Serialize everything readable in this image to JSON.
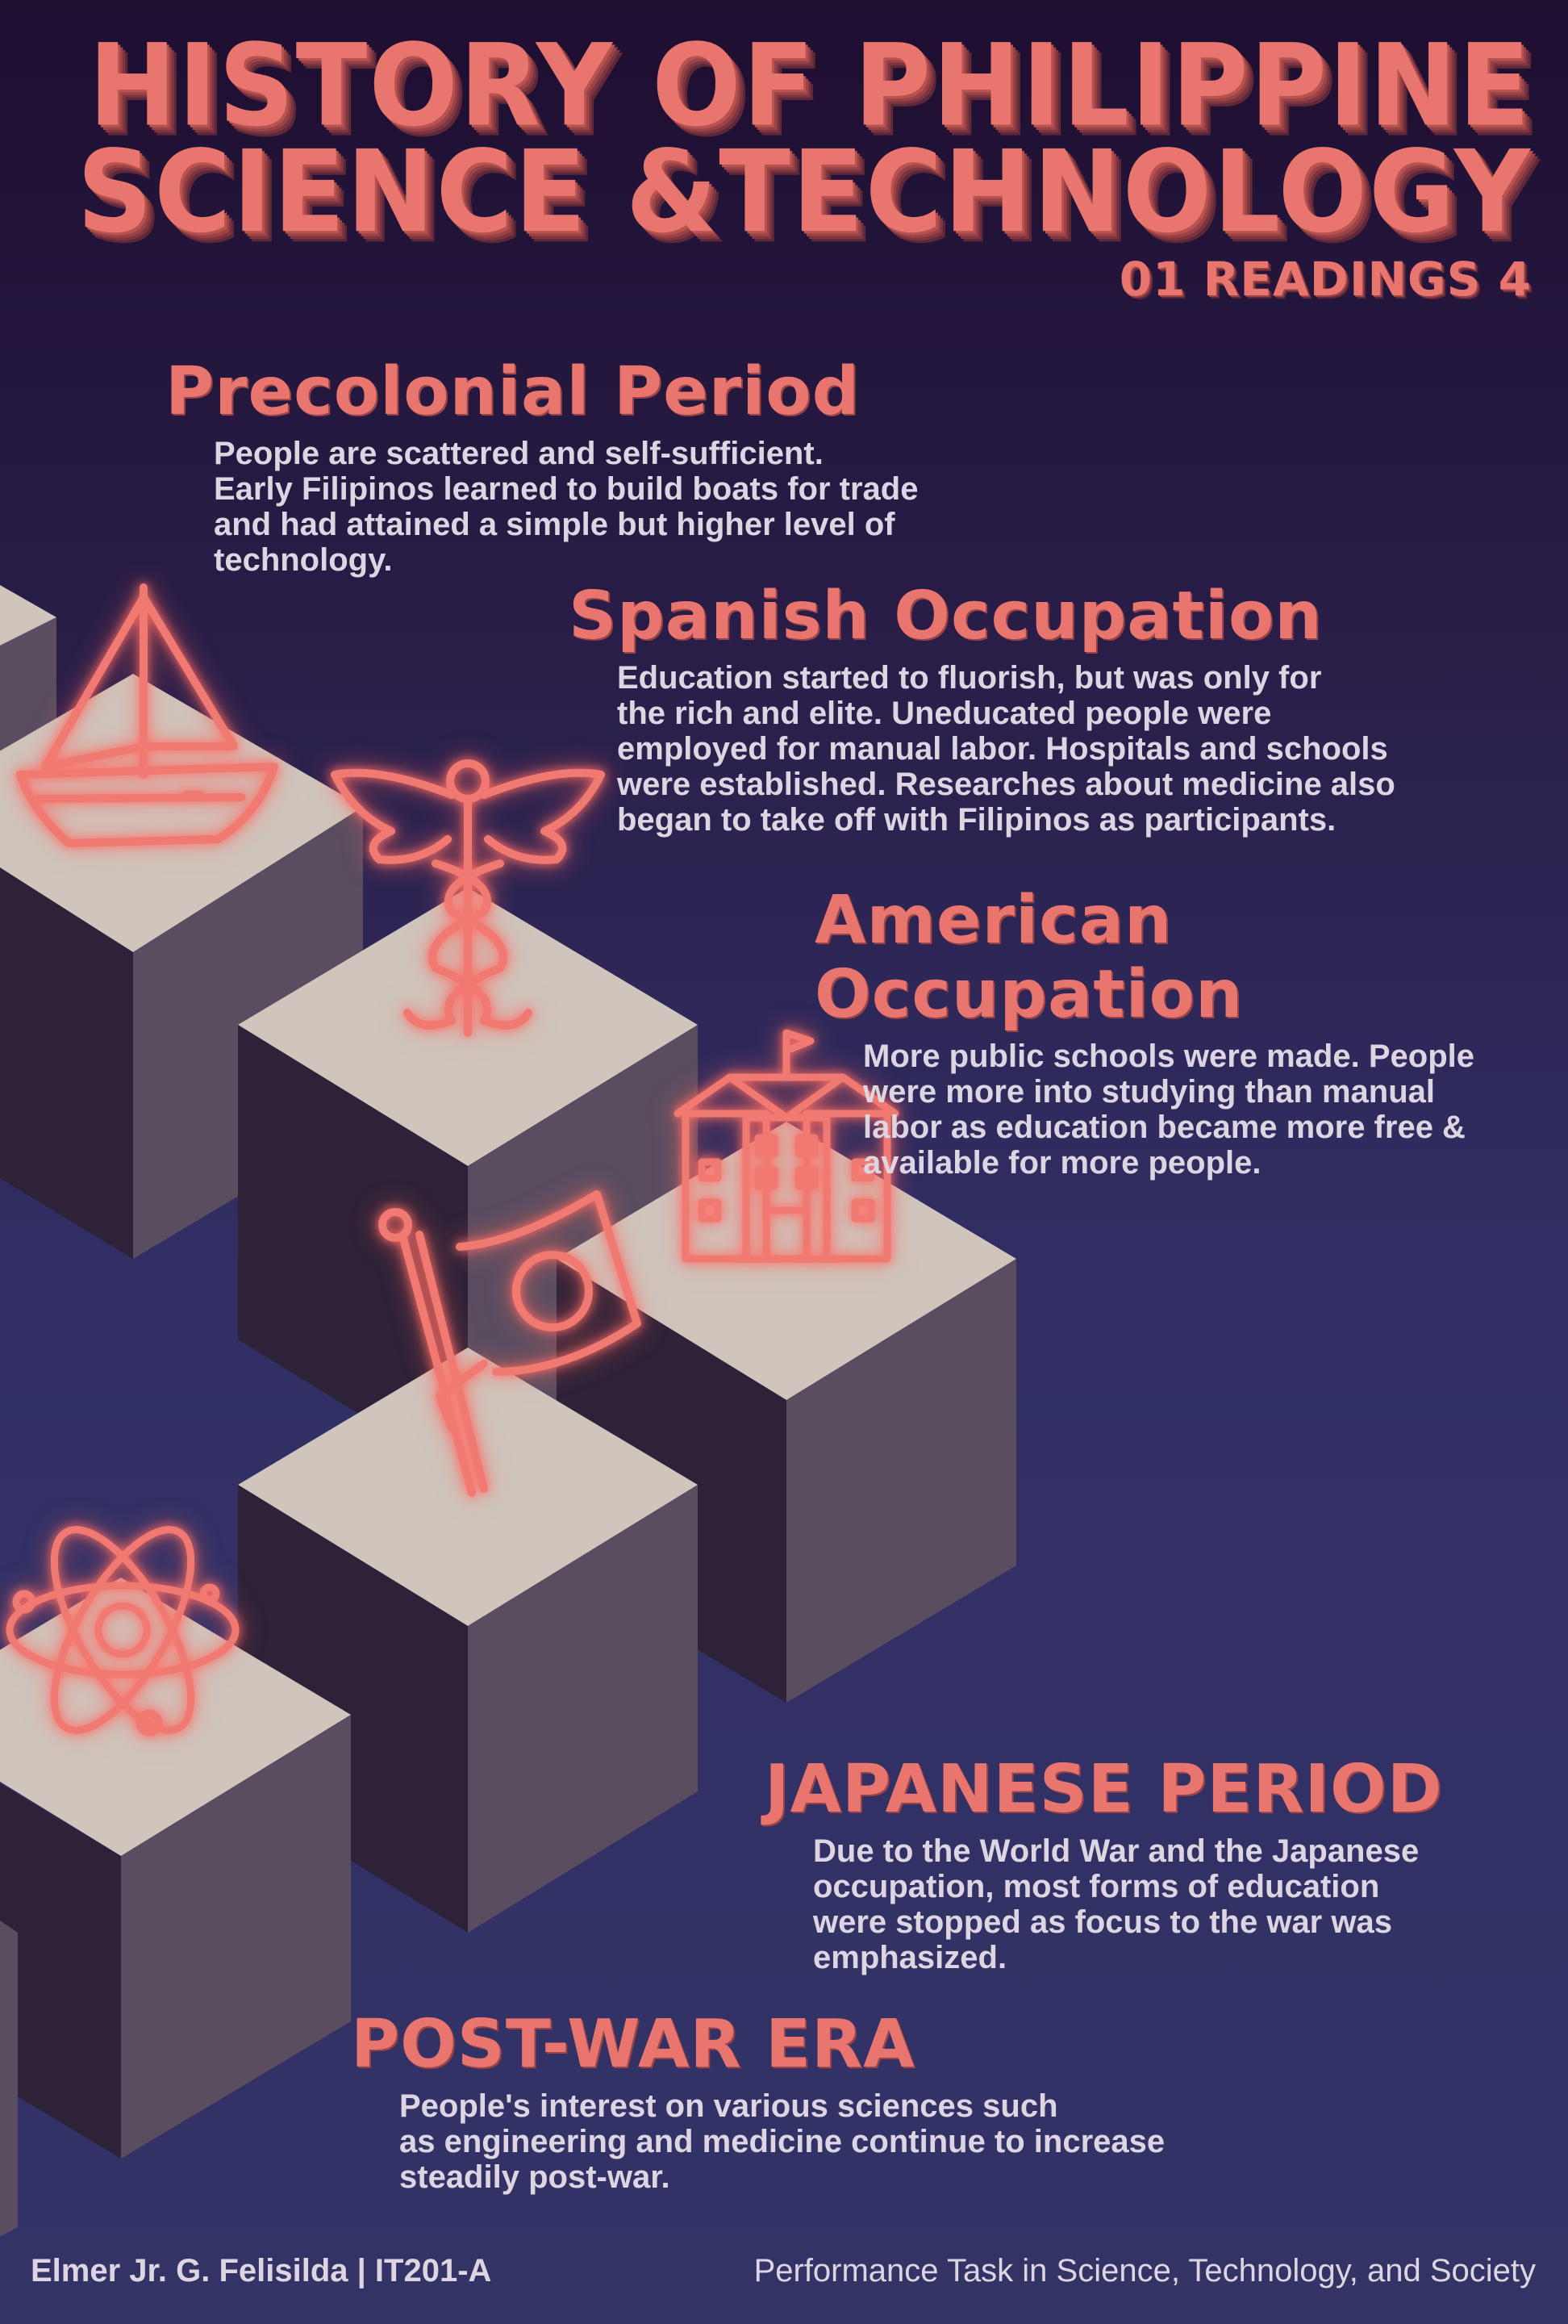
{
  "header": {
    "title_line1": "HISTORY OF PHILIPPINE",
    "title_line2": "SCIENCE &TECHNOLOGY",
    "subtitle": "01 READINGS 4"
  },
  "periods": [
    {
      "title": "Precolonial Period",
      "text": "People are scattered and self-sufficient.\nEarly Filipinos learned to build boats for trade\nand had attained a simple but higher level of\ntechnology."
    },
    {
      "title": "Spanish Occupation",
      "text": "Education started to fluorish, but was only for\nthe rich and elite. Uneducated people were\nemployed for manual labor. Hospitals and schools\nwere established. Researches about medicine also\nbegan to take off with Filipinos as participants."
    },
    {
      "title": "American Occupation",
      "text": "More public schools were made. People\nwere more into studying than manual\nlabor as education became more free &\navailable for more people."
    },
    {
      "title": "JAPANESE PERIOD",
      "text": "Due to the World War and the Japanese\noccupation, most forms of education\nwere stopped as focus to the war was\nemphasized."
    },
    {
      "title": "POST-WAR ERA",
      "text": "People's interest on various sciences such\nas engineering and medicine continue to increase\nsteadily post-war."
    }
  ],
  "footer": {
    "author": "Elmer Jr. G. Felisilda | IT201-A",
    "course": "Performance Task in Science, Technology, and Society"
  },
  "icons": [
    "sailboat-icon",
    "caduceus-icon",
    "school-icon",
    "japan-flag-icon",
    "atom-icon"
  ],
  "colors": {
    "accent": "#e9766e",
    "cube_top": "#cfc5bd",
    "cube_right": "#5a4d60",
    "cube_left": "#2e2238",
    "text": "#ddd6e2"
  }
}
